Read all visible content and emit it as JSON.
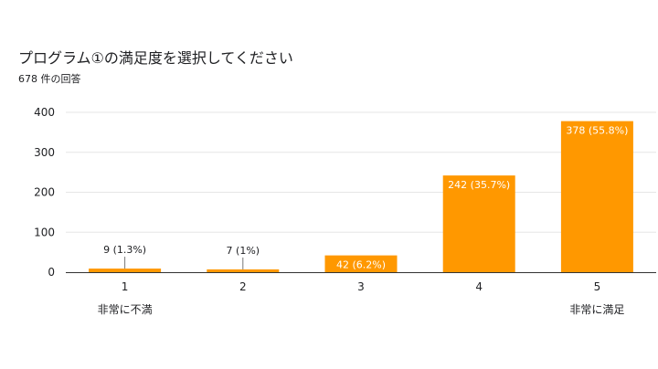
{
  "header": {
    "title": "プログラム①の満足度を選択してください",
    "subtitle": "678 件の回答"
  },
  "colors": {
    "bar": "#FF9800",
    "grid": "#e6e6e6",
    "axis": "#333333"
  },
  "chart_data": {
    "type": "bar",
    "categories": [
      "1",
      "2",
      "3",
      "4",
      "5"
    ],
    "values": [
      9,
      7,
      42,
      242,
      378
    ],
    "data_labels": [
      "9 (1.3%)",
      "7 (1%)",
      "42 (6.2%)",
      "242 (35.7%)",
      "378 (55.8%)"
    ],
    "category_sublabels": [
      "非常に不満",
      "",
      "",
      "",
      "非常に満足"
    ],
    "yticks": [
      0,
      100,
      200,
      300,
      400
    ],
    "ylim": [
      0,
      400
    ],
    "grid": true,
    "legend": "none"
  }
}
